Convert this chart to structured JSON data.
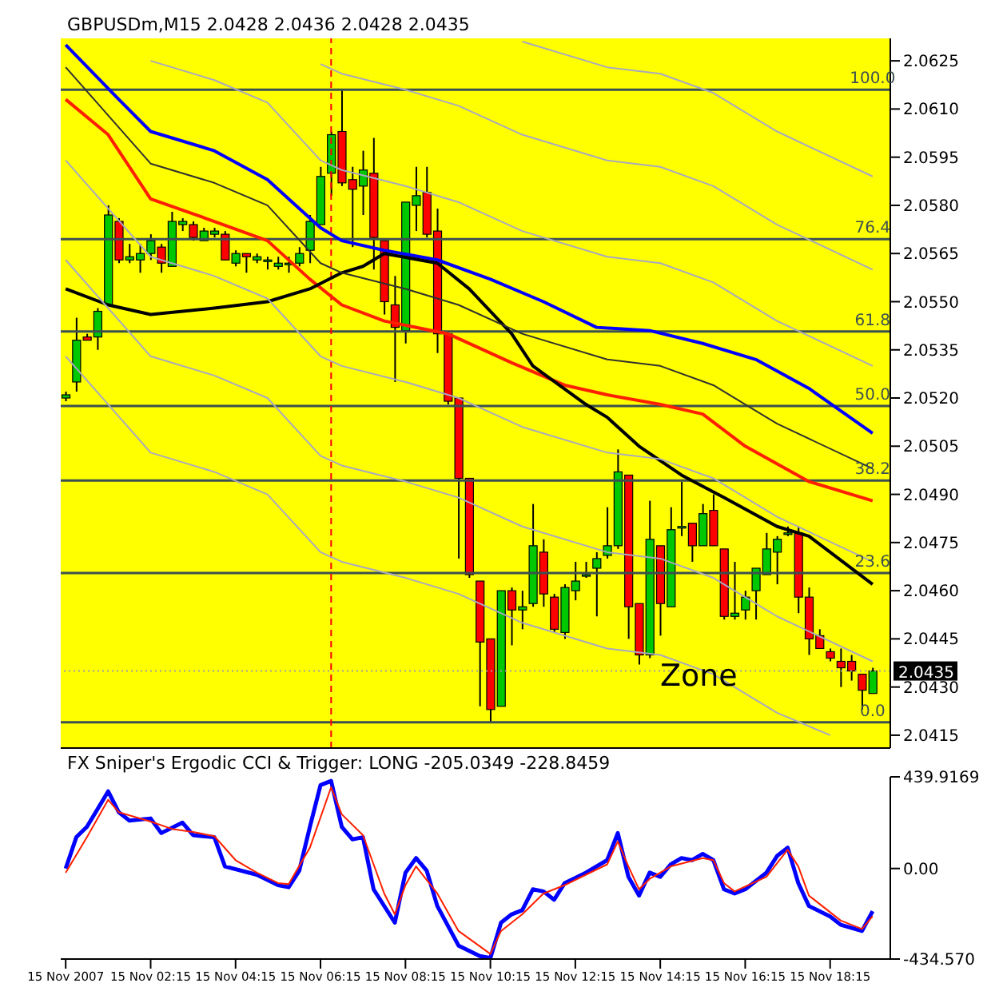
{
  "chart_data": [
    {
      "type": "candlestick",
      "title": "GBPUSDm,M15  2.0428 2.0436 2.0428 2.0435",
      "tick_labels": "y",
      "x": [
        "2007-11-15T00:15",
        "2007-11-15T00:30",
        "2007-11-15T00:45",
        "2007-11-15T01:00",
        "2007-11-15T01:15",
        "2007-11-15T01:30",
        "2007-11-15T01:45",
        "2007-11-15T02:00",
        "2007-11-15T02:15",
        "2007-11-15T02:30",
        "2007-11-15T02:45",
        "2007-11-15T03:00",
        "2007-11-15T03:15",
        "2007-11-15T03:30",
        "2007-11-15T03:45",
        "2007-11-15T04:00",
        "2007-11-15T04:15",
        "2007-11-15T04:30",
        "2007-11-15T04:45",
        "2007-11-15T05:00",
        "2007-11-15T05:15",
        "2007-11-15T05:30",
        "2007-11-15T05:45",
        "2007-11-15T06:00",
        "2007-11-15T06:15",
        "2007-11-15T06:30",
        "2007-11-15T06:45",
        "2007-11-15T07:00",
        "2007-11-15T07:15",
        "2007-11-15T07:30",
        "2007-11-15T07:45",
        "2007-11-15T08:00",
        "2007-11-15T08:15",
        "2007-11-15T08:30",
        "2007-11-15T08:45",
        "2007-11-15T09:00",
        "2007-11-15T09:15",
        "2007-11-15T09:30",
        "2007-11-15T09:45",
        "2007-11-15T10:00",
        "2007-11-15T10:15",
        "2007-11-15T10:30",
        "2007-11-15T10:45",
        "2007-11-15T11:00",
        "2007-11-15T11:15",
        "2007-11-15T11:30",
        "2007-11-15T11:45",
        "2007-11-15T12:00",
        "2007-11-15T12:15",
        "2007-11-15T12:30",
        "2007-11-15T12:45",
        "2007-11-15T13:00",
        "2007-11-15T13:15",
        "2007-11-15T13:30",
        "2007-11-15T13:45",
        "2007-11-15T14:00",
        "2007-11-15T14:15",
        "2007-11-15T14:30",
        "2007-11-15T14:45",
        "2007-11-15T15:00",
        "2007-11-15T15:15",
        "2007-11-15T15:30",
        "2007-11-15T15:45",
        "2007-11-15T16:00",
        "2007-11-15T16:15",
        "2007-11-15T16:30",
        "2007-11-15T16:45",
        "2007-11-15T17:00",
        "2007-11-15T17:15",
        "2007-11-15T17:30",
        "2007-11-15T17:45",
        "2007-11-15T18:00",
        "2007-11-15T18:15",
        "2007-11-15T18:30",
        "2007-11-15T18:45",
        "2007-11-15T19:00",
        "2007-11-15T19:15"
      ],
      "ohlc": [
        [
          2.052,
          2.0522,
          2.0519,
          2.0521
        ],
        [
          2.0525,
          2.0545,
          2.0522,
          2.0538
        ],
        [
          2.0539,
          2.054,
          2.0538,
          2.0538
        ],
        [
          2.0539,
          2.0548,
          2.0535,
          2.0547
        ],
        [
          2.0549,
          2.058,
          2.0549,
          2.0577
        ],
        [
          2.0575,
          2.0576,
          2.0562,
          2.0563
        ],
        [
          2.0563,
          2.0568,
          2.0562,
          2.0564
        ],
        [
          2.0563,
          2.0568,
          2.0559,
          2.0565
        ],
        [
          2.0565,
          2.0571,
          2.0563,
          2.0569
        ],
        [
          2.0567,
          2.0568,
          2.0559,
          2.0562
        ],
        [
          2.0561,
          2.0578,
          2.0561,
          2.0575
        ],
        [
          2.0574,
          2.0576,
          2.0572,
          2.0575
        ],
        [
          2.0574,
          2.0575,
          2.0569,
          2.057
        ],
        [
          2.0569,
          2.0573,
          2.0569,
          2.0572
        ],
        [
          2.0571,
          2.0573,
          2.057,
          2.0572
        ],
        [
          2.0571,
          2.0572,
          2.0563,
          2.0563
        ],
        [
          2.0562,
          2.0566,
          2.0561,
          2.0565
        ],
        [
          2.0565,
          2.0565,
          2.0559,
          2.0564
        ],
        [
          2.0563,
          2.0565,
          2.0562,
          2.0564
        ],
        [
          2.0563,
          2.0564,
          2.056,
          2.0563
        ],
        [
          2.0561,
          2.0564,
          2.056,
          2.0562
        ],
        [
          2.0562,
          2.0564,
          2.0559,
          2.0562
        ],
        [
          2.0562,
          2.0567,
          2.0561,
          2.0565
        ],
        [
          2.0566,
          2.0577,
          2.0562,
          2.0575
        ],
        [
          2.0574,
          2.0592,
          2.0574,
          2.0589
        ],
        [
          2.059,
          2.0603,
          2.0583,
          2.0602
        ],
        [
          2.0603,
          2.0616,
          2.0586,
          2.0587
        ],
        [
          2.0588,
          2.0592,
          2.0567,
          2.0585
        ],
        [
          2.0586,
          2.0597,
          2.0577,
          2.0591
        ],
        [
          2.059,
          2.0601,
          2.056,
          2.057
        ],
        [
          2.0569,
          2.0569,
          2.0546,
          2.055
        ],
        [
          2.0549,
          2.0558,
          2.0525,
          2.0542
        ],
        [
          2.0541,
          2.0581,
          2.0537,
          2.0581
        ],
        [
          2.058,
          2.0592,
          2.0572,
          2.0583
        ],
        [
          2.0584,
          2.0592,
          2.057,
          2.0571
        ],
        [
          2.0572,
          2.0579,
          2.0534,
          2.054
        ],
        [
          2.054,
          2.054,
          2.0518,
          2.0519
        ],
        [
          2.052,
          2.052,
          2.047,
          2.0495
        ],
        [
          2.0495,
          2.0495,
          2.0464,
          2.0465
        ],
        [
          2.0463,
          2.0463,
          2.0424,
          2.0444
        ],
        [
          2.0445,
          2.0445,
          2.0419,
          2.0423
        ],
        [
          2.0424,
          2.046,
          2.0424,
          2.046
        ],
        [
          2.046,
          2.0461,
          2.0443,
          2.0454
        ],
        [
          2.0454,
          2.046,
          2.0448,
          2.0455
        ],
        [
          2.0456,
          2.0487,
          2.0455,
          2.0474
        ],
        [
          2.0472,
          2.0476,
          2.0455,
          2.0459
        ],
        [
          2.0458,
          2.0459,
          2.0447,
          2.0448
        ],
        [
          2.0447,
          2.0462,
          2.0445,
          2.0461
        ],
        [
          2.046,
          2.0469,
          2.0457,
          2.0463
        ],
        [
          2.0465,
          2.0469,
          2.0464,
          2.0465
        ],
        [
          2.0467,
          2.0472,
          2.0452,
          2.047
        ],
        [
          2.0471,
          2.0486,
          2.047,
          2.0474
        ],
        [
          2.0474,
          2.0504,
          2.0473,
          2.0497
        ],
        [
          2.0496,
          2.0496,
          2.0445,
          2.0455
        ],
        [
          2.0456,
          2.0456,
          2.0437,
          2.044
        ],
        [
          2.044,
          2.0488,
          2.0439,
          2.0476
        ],
        [
          2.0474,
          2.0474,
          2.0446,
          2.0456
        ],
        [
          2.0455,
          2.0486,
          2.0455,
          2.0479
        ],
        [
          2.048,
          2.0494,
          2.0477,
          2.048
        ],
        [
          2.0481,
          2.0481,
          2.0469,
          2.0474
        ],
        [
          2.0474,
          2.0487,
          2.0474,
          2.0484
        ],
        [
          2.0485,
          2.049,
          2.0474,
          2.0474
        ],
        [
          2.0473,
          2.0473,
          2.0451,
          2.0452
        ],
        [
          2.0452,
          2.0469,
          2.0451,
          2.0453
        ],
        [
          2.0454,
          2.046,
          2.0451,
          2.0458
        ],
        [
          2.046,
          2.0467,
          2.0451,
          2.0467
        ],
        [
          2.0465,
          2.0478,
          2.0465,
          2.0473
        ],
        [
          2.0472,
          2.0477,
          2.0462,
          2.0476
        ],
        [
          2.0478,
          2.048,
          2.0477,
          2.0478
        ],
        [
          2.0478,
          2.048,
          2.0453,
          2.0458
        ],
        [
          2.0458,
          2.0461,
          2.044,
          2.0445
        ],
        [
          2.0446,
          2.0448,
          2.0442,
          2.0442
        ],
        [
          2.0441,
          2.0442,
          2.0438,
          2.0439
        ],
        [
          2.0438,
          2.0442,
          2.043,
          2.0436
        ],
        [
          2.0438,
          2.044,
          2.0432,
          2.0435
        ],
        [
          2.0434,
          2.0434,
          2.0423,
          2.0429
        ],
        [
          2.0428,
          2.0436,
          2.0428,
          2.0435
        ]
      ],
      "colors": [
        "#00c800",
        "#00c800",
        "#ff0000",
        "#00c800",
        "#00c800",
        "#ff0000",
        "#00c800",
        "#00c800",
        "#00c800",
        "#ff0000",
        "#00c800",
        "#00c800",
        "#ff0000",
        "#00c800",
        "#00c800",
        "#ff0000",
        "#00c800",
        "#ff0000",
        "#00c800",
        "#00c800",
        "#00c800",
        "#00c800",
        "#00c800",
        "#00c800",
        "#00c800",
        "#00c800",
        "#ff0000",
        "#ff0000",
        "#00c800",
        "#ff0000",
        "#ff0000",
        "#ff0000",
        "#00c800",
        "#00c800",
        "#ff0000",
        "#ff0000",
        "#ff0000",
        "#ff0000",
        "#ff0000",
        "#ff0000",
        "#ff0000",
        "#00c800",
        "#ff0000",
        "#00c800",
        "#00c800",
        "#ff0000",
        "#ff0000",
        "#00c800",
        "#00c800",
        "#00c800",
        "#00c800",
        "#00c800",
        "#00c800",
        "#ff0000",
        "#ff0000",
        "#00c800",
        "#ff0000",
        "#00c800",
        "#00c800",
        "#ff0000",
        "#00c800",
        "#ff0000",
        "#ff0000",
        "#00c800",
        "#00c800",
        "#00c800",
        "#00c800",
        "#00c800",
        "#00c800",
        "#ff0000",
        "#ff0000",
        "#ff0000",
        "#ff0000",
        "#ff0000",
        "#ff0000",
        "#ff0000",
        "#00c800"
      ],
      "series": [
        {
          "type": "line",
          "color": "#0000ff",
          "x": [
            "2007-11-15T00:15",
            "2007-11-15T01:30",
            "2007-11-15T02:15",
            "2007-11-15T03:45",
            "2007-11-15T05:00",
            "2007-11-15T06:15",
            "2007-11-15T06:45",
            "2007-11-15T07:45",
            "2007-11-15T09:00",
            "2007-11-15T10:15",
            "2007-11-15T11:30",
            "2007-11-15T12:45",
            "2007-11-15T14:00",
            "2007-11-15T15:15",
            "2007-11-15T16:30",
            "2007-11-15T17:45",
            "2007-11-15T19:15"
          ],
          "values": [
            2.063,
            2.0613,
            2.0603,
            2.0597,
            2.0588,
            2.0573,
            2.0569,
            2.0566,
            2.0563,
            2.0557,
            2.055,
            2.0542,
            2.0541,
            2.0537,
            2.0532,
            2.0523,
            2.0509
          ]
        },
        {
          "type": "line",
          "color": "#ff2000",
          "x": [
            "2007-11-15T00:15",
            "2007-11-15T01:15",
            "2007-11-15T02:15",
            "2007-11-15T03:45",
            "2007-11-15T05:00",
            "2007-11-15T06:00",
            "2007-11-15T06:45",
            "2007-11-15T07:45",
            "2007-11-15T09:15",
            "2007-11-15T10:45",
            "2007-11-15T12:00",
            "2007-11-15T13:00",
            "2007-11-15T14:15",
            "2007-11-15T15:15",
            "2007-11-15T16:15",
            "2007-11-15T17:45",
            "2007-11-15T19:15"
          ],
          "values": [
            2.0613,
            2.0602,
            2.0582,
            2.0575,
            2.0569,
            2.0557,
            2.0549,
            2.0544,
            2.054,
            2.0531,
            2.0524,
            2.0521,
            2.0518,
            2.0515,
            2.0505,
            2.0494,
            2.0488
          ]
        },
        {
          "type": "line",
          "color": "#000000",
          "x": [
            "2007-11-15T00:15",
            "2007-11-15T01:15",
            "2007-11-15T02:15",
            "2007-11-15T03:45",
            "2007-11-15T05:00",
            "2007-11-15T06:00",
            "2007-11-15T06:45",
            "2007-11-15T07:15",
            "2007-11-15T07:45",
            "2007-11-15T09:00",
            "2007-11-15T09:45",
            "2007-11-15T10:45",
            "2007-11-15T11:15",
            "2007-11-15T12:30",
            "2007-11-15T13:00",
            "2007-11-15T13:45",
            "2007-11-15T14:45",
            "2007-11-15T15:45",
            "2007-11-15T17:00",
            "2007-11-15T17:45",
            "2007-11-15T19:15"
          ],
          "values": [
            2.0554,
            2.0549,
            2.0546,
            2.0548,
            2.055,
            2.0554,
            2.0559,
            2.0561,
            2.0565,
            2.0562,
            2.0554,
            2.054,
            2.053,
            2.0518,
            2.0514,
            2.0505,
            2.0496,
            2.0489,
            2.048,
            2.0477,
            2.0462
          ]
        },
        {
          "type": "line",
          "color": "#303030",
          "x": [
            "2007-11-15T00:15",
            "2007-11-15T02:15",
            "2007-11-15T03:45",
            "2007-11-15T05:00",
            "2007-11-15T06:15",
            "2007-11-15T06:45",
            "2007-11-15T08:15",
            "2007-11-15T09:30",
            "2007-11-15T11:00",
            "2007-11-15T13:00",
            "2007-11-15T14:15",
            "2007-11-15T15:30",
            "2007-11-15T17:00",
            "2007-11-15T19:15"
          ],
          "values": [
            2.0623,
            2.0593,
            2.0587,
            2.058,
            2.0562,
            2.0559,
            2.0554,
            2.0549,
            2.054,
            2.0532,
            2.053,
            2.0524,
            2.0512,
            2.0498
          ]
        },
        {
          "type": "line",
          "color": "#a8a8c0",
          "x": [
            "2007-11-15T02:15",
            "2007-11-15T03:45",
            "2007-11-15T05:00",
            "2007-11-15T06:15",
            "2007-11-15T06:45",
            "2007-11-15T08:15",
            "2007-11-15T09:30",
            "2007-11-15T11:00",
            "2007-11-15T13:00",
            "2007-11-15T14:15",
            "2007-11-15T15:30",
            "2007-11-15T17:00",
            "2007-11-15T19:15"
          ],
          "values": [
            2.0625,
            2.0619,
            2.0612,
            2.0594,
            2.0591,
            2.0586,
            2.0581,
            2.0572,
            2.0564,
            2.0562,
            2.0556,
            2.0544,
            2.053
          ]
        },
        {
          "type": "line",
          "color": "#a8a8c0",
          "x": [
            "2007-11-15T06:15",
            "2007-11-15T06:45",
            "2007-11-15T08:15",
            "2007-11-15T09:30",
            "2007-11-15T11:00",
            "2007-11-15T13:00",
            "2007-11-15T14:15",
            "2007-11-15T15:30",
            "2007-11-15T17:00",
            "2007-11-15T19:15"
          ],
          "values": [
            2.0624,
            2.0621,
            2.0616,
            2.0611,
            2.0602,
            2.0594,
            2.0592,
            2.0586,
            2.0574,
            2.056
          ]
        },
        {
          "type": "line",
          "color": "#a8a8c0",
          "x": [
            "2007-11-15T11:00",
            "2007-11-15T13:00",
            "2007-11-15T14:15",
            "2007-11-15T15:30",
            "2007-11-15T17:00",
            "2007-11-15T19:15"
          ],
          "values": [
            2.0631,
            2.0623,
            2.0621,
            2.0615,
            2.0603,
            2.0589
          ]
        },
        {
          "type": "line",
          "color": "#a8a8c0",
          "x": [
            "2007-11-15T00:15",
            "2007-11-15T02:15",
            "2007-11-15T03:45",
            "2007-11-15T05:00",
            "2007-11-15T06:15",
            "2007-11-15T06:45",
            "2007-11-15T08:15",
            "2007-11-15T09:30",
            "2007-11-15T11:00",
            "2007-11-15T13:00",
            "2007-11-15T14:15",
            "2007-11-15T15:30",
            "2007-11-15T17:00",
            "2007-11-15T19:15"
          ],
          "values": [
            2.0594,
            2.0564,
            2.0558,
            2.0551,
            2.0533,
            2.053,
            2.0525,
            2.052,
            2.0511,
            2.0503,
            2.0501,
            2.0495,
            2.0483,
            2.0469
          ]
        },
        {
          "type": "line",
          "color": "#a8a8c0",
          "x": [
            "2007-11-15T00:15",
            "2007-11-15T02:15",
            "2007-11-15T03:45",
            "2007-11-15T05:00",
            "2007-11-15T06:15",
            "2007-11-15T06:45",
            "2007-11-15T08:15",
            "2007-11-15T09:30",
            "2007-11-15T11:00",
            "2007-11-15T13:00",
            "2007-11-15T14:15",
            "2007-11-15T15:30",
            "2007-11-15T17:00",
            "2007-11-15T19:15"
          ],
          "values": [
            2.0563,
            2.0533,
            2.0527,
            2.052,
            2.0502,
            2.0499,
            2.0494,
            2.0489,
            2.048,
            2.0472,
            2.047,
            2.0464,
            2.0452,
            2.0438
          ]
        },
        {
          "type": "line",
          "color": "#a8a8c0",
          "x": [
            "2007-11-15T00:15",
            "2007-11-15T02:15",
            "2007-11-15T03:45",
            "2007-11-15T05:00",
            "2007-11-15T06:15",
            "2007-11-15T06:45",
            "2007-11-15T08:15",
            "2007-11-15T09:30",
            "2007-11-15T11:00",
            "2007-11-15T13:00",
            "2007-11-15T14:15",
            "2007-11-15T15:30",
            "2007-11-15T17:00",
            "2007-11-15T18:15"
          ],
          "values": [
            2.0533,
            2.0503,
            2.0497,
            2.049,
            2.0472,
            2.0469,
            2.0464,
            2.0459,
            2.045,
            2.0442,
            2.044,
            2.0434,
            2.0422,
            2.0415
          ]
        }
      ],
      "xlim": [
        "2007-11-15T00:08",
        "2007-11-15T19:40"
      ],
      "ylim": [
        2.0411,
        2.0632
      ],
      "yticks": [
        2.0415,
        {
          "value": 2.043,
          "label": "2.0430"
        },
        2.0445,
        {
          "value": 2.046,
          "label": "2.0460"
        },
        2.0475,
        {
          "value": 2.049,
          "label": "2.0490"
        },
        2.0505,
        {
          "value": 2.052,
          "label": "2.0520"
        },
        2.0535,
        {
          "value": 2.055,
          "label": "2.0550"
        },
        2.0565,
        {
          "value": 2.058,
          "label": "2.0580"
        },
        2.0595,
        {
          "value": 2.061,
          "label": "2.0610"
        },
        2.0625
      ],
      "bands": [
        {
          "axis": "x",
          "from": "2007-11-15T00:08",
          "to": "2007-11-15T10:00",
          "color": "#ffff00"
        },
        {
          "axis": "x",
          "from": "2007-11-15T09:30",
          "to": "2007-11-15T19:40",
          "color": "#ffff00"
        }
      ],
      "ref_lines": [
        {
          "axis": "y",
          "value": 2.0616,
          "color": "#3c5050"
        },
        {
          "axis": "y",
          "value": 2.05695,
          "color": "#3c5050"
        },
        {
          "axis": "y",
          "value": 2.05407,
          "color": "#3c5050"
        },
        {
          "axis": "y",
          "value": 2.05175,
          "color": "#3c5050"
        },
        {
          "axis": "y",
          "value": 2.04943,
          "color": "#3c5050"
        },
        {
          "axis": "y",
          "value": 2.04655,
          "color": "#3c5050"
        },
        {
          "axis": "y",
          "value": 2.0419,
          "color": "#3c5050"
        },
        {
          "axis": "y",
          "value": 2.0435,
          "label": "2.0435",
          "color": "#a0a0a0",
          "line_style": "dotted"
        },
        {
          "axis": "x",
          "value": "2007-11-15T06:30",
          "color": "#ff0000",
          "line_style": "dashed"
        }
      ],
      "annotations": [
        {
          "text": "100.0",
          "x": "2007-11-15T19:15",
          "y": 2.0616
        },
        {
          "text": "76.4",
          "x": "2007-11-15T19:15",
          "y": 2.05695
        },
        {
          "text": "61.8",
          "x": "2007-11-15T19:15",
          "y": 2.05407
        },
        {
          "text": "50.0",
          "x": "2007-11-15T19:15",
          "y": 2.05175
        },
        {
          "text": "38.2",
          "x": "2007-11-15T19:15",
          "y": 2.04943
        },
        {
          "text": "23.6",
          "x": "2007-11-15T19:15",
          "y": 2.04655
        },
        {
          "text": "0.0",
          "x": "2007-11-15T19:15",
          "y": 2.0419
        },
        "Zone"
      ]
    },
    {
      "type": "line",
      "title": "FX Sniper's Ergodic CCI & Trigger: LONG -205.0349 -228.8459",
      "series": [
        {
          "color": "#0000ff",
          "x": [
            "2007-11-15T00:15",
            "2007-11-15T00:30",
            "2007-11-15T00:45",
            "2007-11-15T01:15",
            "2007-11-15T01:30",
            "2007-11-15T01:45",
            "2007-11-15T02:15",
            "2007-11-15T02:30",
            "2007-11-15T03:00",
            "2007-11-15T03:15",
            "2007-11-15T03:45",
            "2007-11-15T04:00",
            "2007-11-15T04:45",
            "2007-11-15T05:15",
            "2007-11-15T05:30",
            "2007-11-15T05:45",
            "2007-11-15T06:00",
            "2007-11-15T06:15",
            "2007-11-15T06:30",
            "2007-11-15T06:45",
            "2007-11-15T07:00",
            "2007-11-15T07:15",
            "2007-11-15T07:30",
            "2007-11-15T08:00",
            "2007-11-15T08:15",
            "2007-11-15T08:30",
            "2007-11-15T08:45",
            "2007-11-15T09:00",
            "2007-11-15T09:30",
            "2007-11-15T10:00",
            "2007-11-15T10:15",
            "2007-11-15T10:30",
            "2007-11-15T10:45",
            "2007-11-15T11:00",
            "2007-11-15T11:15",
            "2007-11-15T11:30",
            "2007-11-15T11:45",
            "2007-11-15T12:00",
            "2007-11-15T12:30",
            "2007-11-15T13:00",
            "2007-11-15T13:15",
            "2007-11-15T13:30",
            "2007-11-15T13:45",
            "2007-11-15T14:00",
            "2007-11-15T14:15",
            "2007-11-15T14:30",
            "2007-11-15T14:45",
            "2007-11-15T15:00",
            "2007-11-15T15:15",
            "2007-11-15T15:30",
            "2007-11-15T15:45",
            "2007-11-15T16:00",
            "2007-11-15T16:15",
            "2007-11-15T16:45",
            "2007-11-15T17:00",
            "2007-11-15T17:15",
            "2007-11-15T17:30",
            "2007-11-15T17:45",
            "2007-11-15T18:15",
            "2007-11-15T18:30",
            "2007-11-15T19:00",
            "2007-11-15T19:15"
          ],
          "values": [
            0,
            150,
            200,
            370,
            270,
            230,
            240,
            170,
            220,
            160,
            150,
            10,
            -30,
            -80,
            -90,
            -10,
            200,
            400,
            420,
            200,
            140,
            150,
            -100,
            -260,
            -20,
            50,
            -10,
            -180,
            -370,
            -420,
            -430,
            -260,
            -220,
            -200,
            -100,
            -110,
            -150,
            -70,
            -20,
            40,
            170,
            -40,
            -130,
            -20,
            -40,
            20,
            50,
            40,
            70,
            40,
            -100,
            -120,
            -100,
            -20,
            60,
            100,
            -70,
            -180,
            -230,
            -270,
            -300,
            -205
          ]
        },
        {
          "color": "#ff2000",
          "x": [
            "2007-11-15T00:15",
            "2007-11-15T00:45",
            "2007-11-15T01:15",
            "2007-11-15T01:30",
            "2007-11-15T02:15",
            "2007-11-15T02:45",
            "2007-11-15T03:15",
            "2007-11-15T03:45",
            "2007-11-15T04:15",
            "2007-11-15T04:45",
            "2007-11-15T05:15",
            "2007-11-15T05:30",
            "2007-11-15T06:00",
            "2007-11-15T06:30",
            "2007-11-15T06:45",
            "2007-11-15T07:15",
            "2007-11-15T07:45",
            "2007-11-15T08:00",
            "2007-11-15T08:15",
            "2007-11-15T08:30",
            "2007-11-15T09:00",
            "2007-11-15T09:30",
            "2007-11-15T10:15",
            "2007-11-15T10:30",
            "2007-11-15T11:00",
            "2007-11-15T11:30",
            "2007-11-15T12:00",
            "2007-11-15T12:30",
            "2007-11-15T13:00",
            "2007-11-15T13:15",
            "2007-11-15T13:30",
            "2007-11-15T13:45",
            "2007-11-15T14:00",
            "2007-11-15T14:30",
            "2007-11-15T15:15",
            "2007-11-15T15:30",
            "2007-11-15T15:45",
            "2007-11-15T16:00",
            "2007-11-15T16:45",
            "2007-11-15T17:15",
            "2007-11-15T17:30",
            "2007-11-15T17:45",
            "2007-11-15T18:30",
            "2007-11-15T19:00",
            "2007-11-15T19:15"
          ],
          "values": [
            -20,
            150,
            330,
            270,
            225,
            190,
            175,
            155,
            40,
            -20,
            -70,
            -75,
            100,
            390,
            260,
            160,
            -120,
            -220,
            -80,
            10,
            -120,
            -300,
            -410,
            -300,
            -220,
            -120,
            -80,
            -30,
            20,
            130,
            10,
            -100,
            -50,
            10,
            50,
            40,
            -70,
            -110,
            -40,
            90,
            10,
            -130,
            -250,
            -290,
            -229
          ]
        }
      ],
      "xlim": [
        "2007-11-15T00:08",
        "2007-11-15T19:40"
      ],
      "xticks": [
        {
          "value": "2007-11-15T00:15",
          "label": "15 Nov 2007"
        },
        {
          "value": "2007-11-15T02:15",
          "label": "15 Nov 02:15"
        },
        {
          "value": "2007-11-15T04:15",
          "label": "15 Nov 04:15"
        },
        {
          "value": "2007-11-15T06:15",
          "label": "15 Nov 06:15"
        },
        {
          "value": "2007-11-15T08:15",
          "label": "15 Nov 08:15"
        },
        {
          "value": "2007-11-15T10:15",
          "label": "15 Nov 10:15"
        },
        {
          "value": "2007-11-15T12:15",
          "label": "15 Nov 12:15"
        },
        {
          "value": "2007-11-15T14:15",
          "label": "15 Nov 14:15"
        },
        {
          "value": "2007-11-15T16:15",
          "label": "15 Nov 16:15"
        },
        {
          "value": "2007-11-15T18:15",
          "label": "15 Nov 18:15"
        }
      ],
      "ylim": [
        -434.57,
        439.9169
      ],
      "yticks": [
        {
          "value": -434.57,
          "label": "-434.570"
        },
        {
          "value": 0,
          "label": "0.00"
        },
        439.9169
      ]
    }
  ]
}
